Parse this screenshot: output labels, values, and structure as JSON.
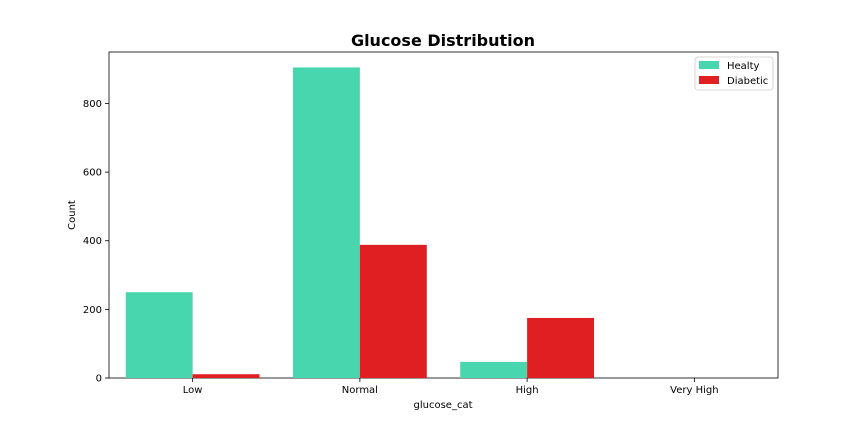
{
  "chart_data": {
    "type": "bar",
    "title": "Glucose Distribution",
    "xlabel": "glucose_cat",
    "ylabel": "Count",
    "categories": [
      "Low",
      "Normal",
      "High",
      "Very High"
    ],
    "series": [
      {
        "name": "Healty",
        "values": [
          250,
          905,
          47,
          0
        ],
        "color": "#48d6ae"
      },
      {
        "name": "Diabetic",
        "values": [
          11,
          388,
          175,
          0
        ],
        "color": "#e01f22"
      }
    ],
    "ylim": [
      0,
      950
    ],
    "yticks": [
      0,
      200,
      400,
      600,
      800
    ],
    "grid": false,
    "legend": "top-right"
  }
}
